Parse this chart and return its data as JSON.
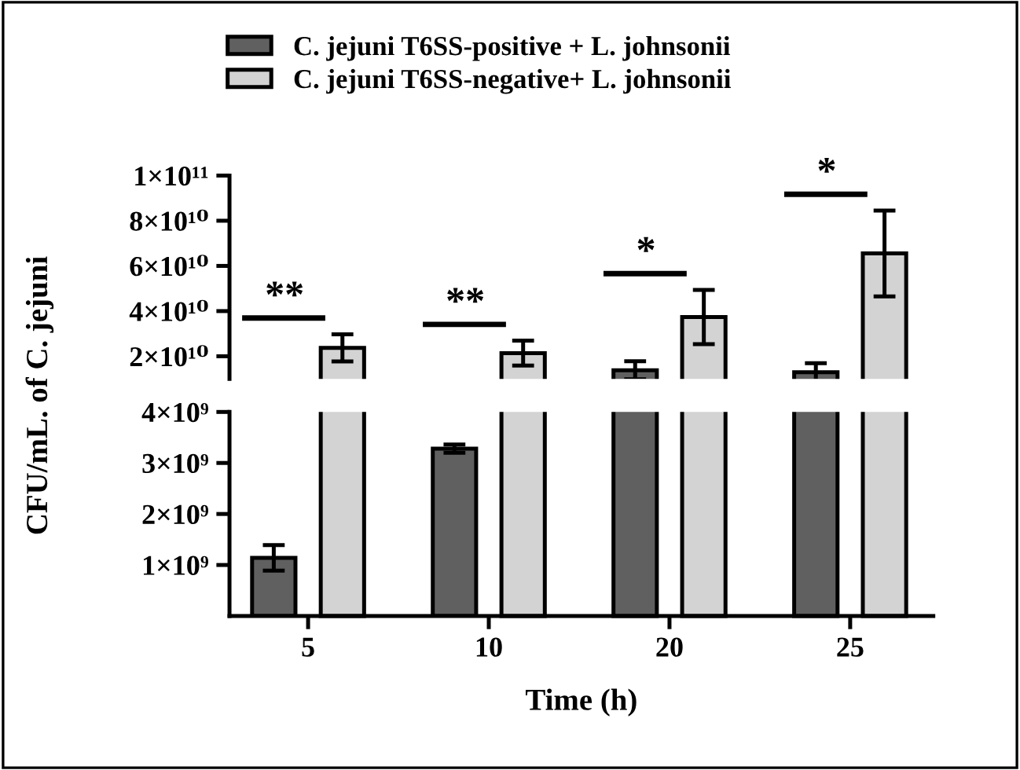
{
  "chart_data": [
    {
      "type": "bar",
      "categories": [
        "5",
        "10",
        "20",
        "25"
      ],
      "ylim": [
        10000000000.0,
        100000000000.0
      ],
      "yticks": [
        {
          "value": 20000000000.0,
          "label": "2×10¹⁰"
        },
        {
          "value": 40000000000.0,
          "label": "4×10¹⁰"
        },
        {
          "value": 60000000000.0,
          "label": "6×10¹⁰"
        },
        {
          "value": 80000000000.0,
          "label": "8×10¹⁰"
        },
        {
          "value": 100000000000.0,
          "label": "1×10¹¹"
        }
      ],
      "tick_labels": "y",
      "legend": "top",
      "grid": false,
      "series": [
        {
          "name": "C. jejuni T6SS-positive + L. johnsonii",
          "color": "#606060",
          "values": [
            null,
            null,
            13800000000.0,
            12900000000.0
          ],
          "errors": [
            null,
            null,
            4000000000.0,
            4000000000.0
          ]
        },
        {
          "name": "C. jejuni T6SS-negative+ L. johnsonii",
          "color": "#d3d3d3",
          "values": [
            23700000000.0,
            21400000000.0,
            37400000000.0,
            65500000000.0
          ],
          "errors": [
            6000000000.0,
            5500000000.0,
            12000000000.0,
            19000000000.0
          ]
        }
      ],
      "annotations": [
        "**",
        "**",
        "*",
        "*"
      ]
    },
    {
      "type": "bar",
      "categories": [
        "5",
        "10",
        "20",
        "25"
      ],
      "ylim": [
        0,
        4000000000.0
      ],
      "yticks": [
        {
          "value": 1000000000.0,
          "label": "1×10⁹"
        },
        {
          "value": 2000000000.0,
          "label": "2×10⁹"
        },
        {
          "value": 3000000000.0,
          "label": "3×10⁹"
        },
        {
          "value": 4000000000.0,
          "label": "4×10⁹"
        }
      ],
      "xlabel": "Time (h)",
      "ylabel": "CFU/mL. of C. jejuni",
      "grid": false,
      "series": [
        {
          "color": "#606060",
          "values": [
            1140000000.0,
            3280000000.0,
            null,
            null
          ],
          "errors": [
            250000000.0,
            80000000.0,
            null,
            null
          ]
        }
      ]
    }
  ]
}
